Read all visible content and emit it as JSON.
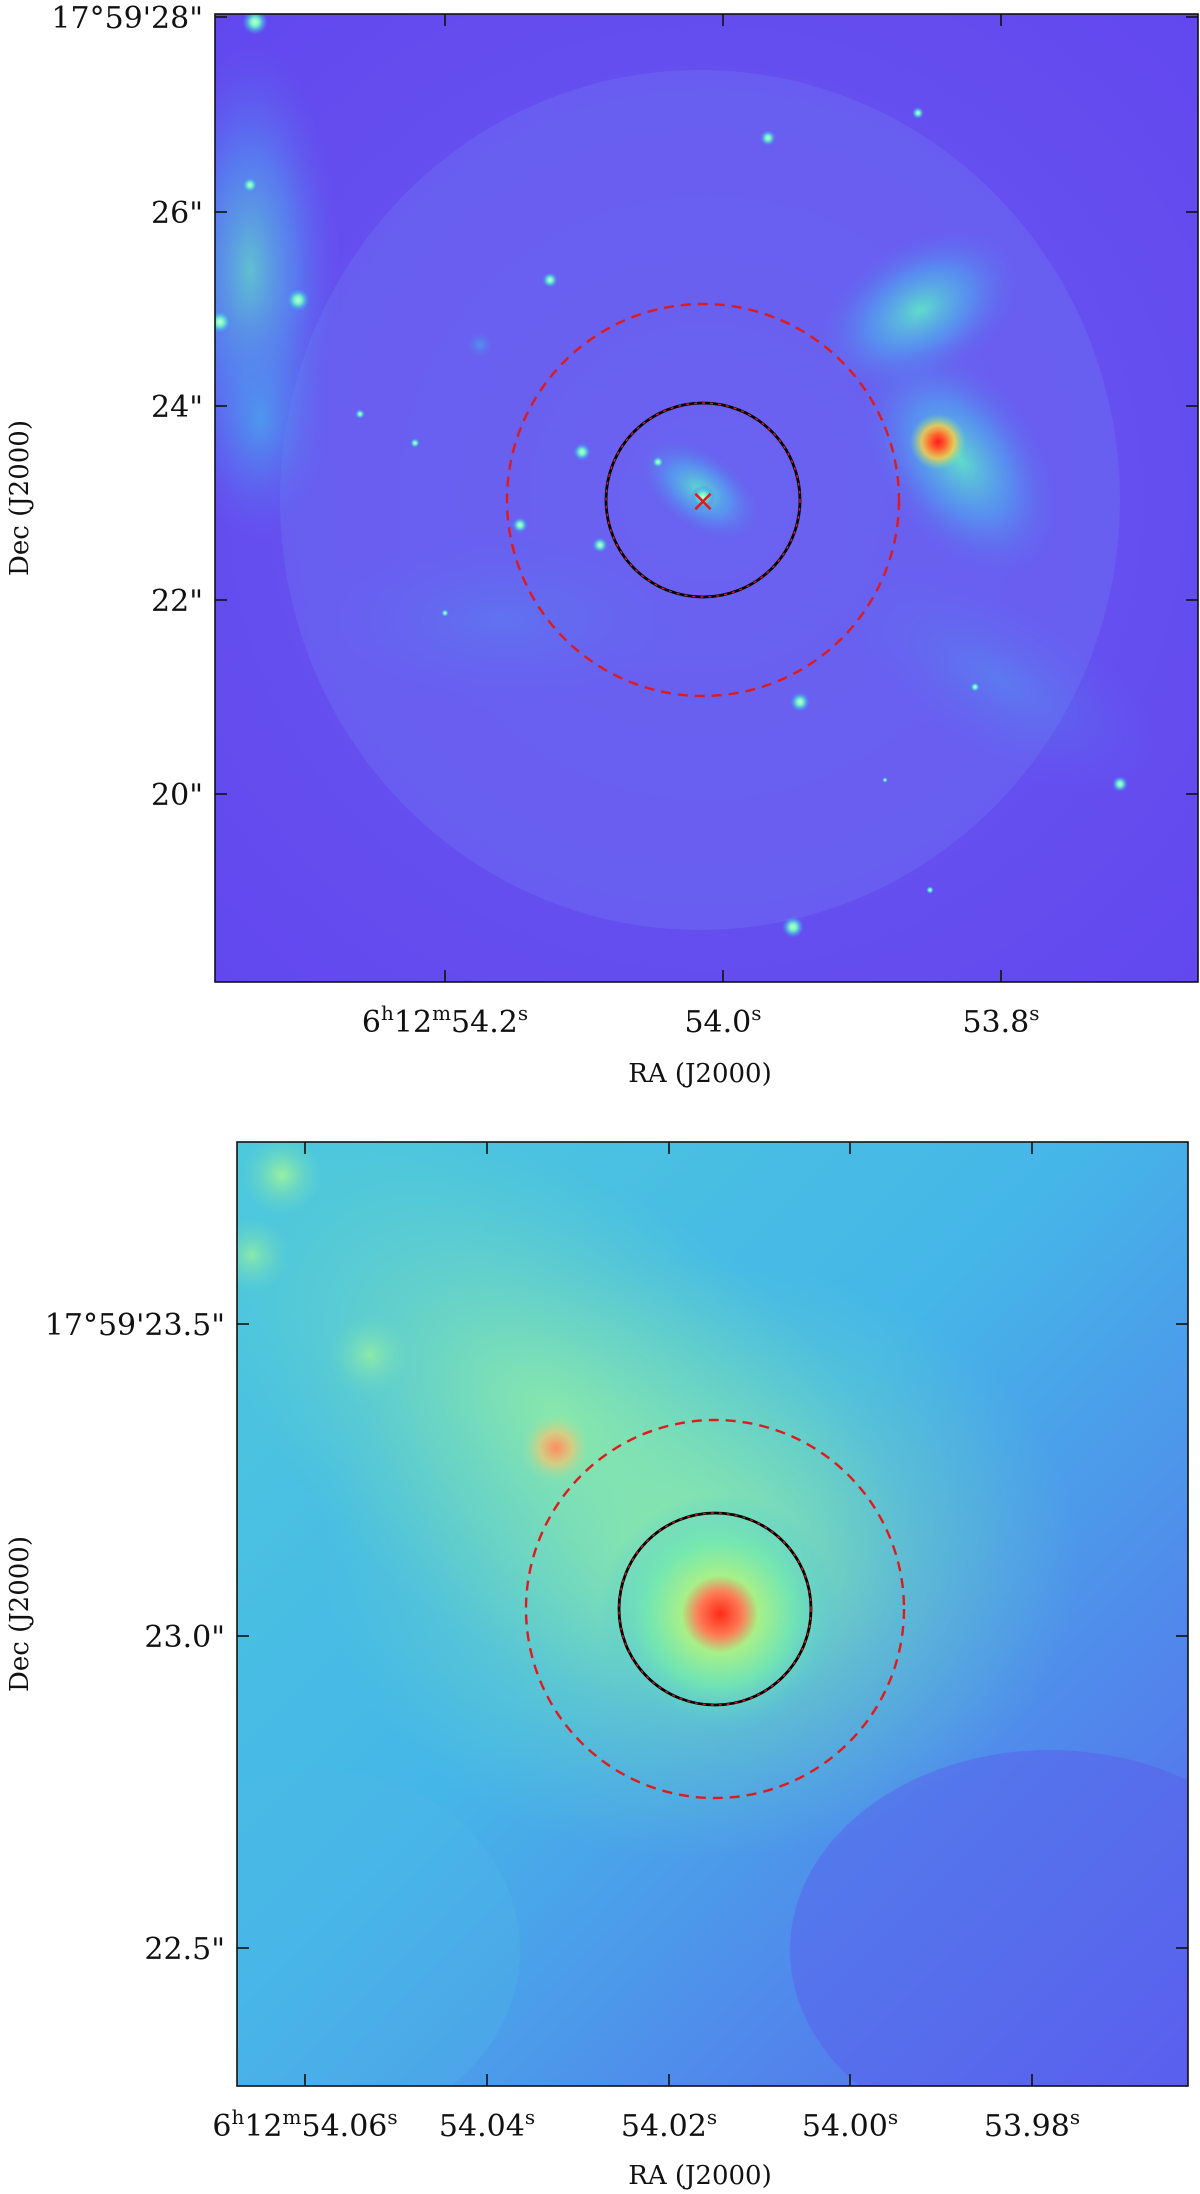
{
  "panels": [
    {
      "id": "top",
      "xlabel": "RA (J2000)",
      "ylabel": "Dec (J2000)",
      "x_ticks": [
        {
          "main": "6",
          "sup1": "h",
          "mid": "12",
          "sup2": "m",
          "rest": "54.2",
          "sup3": "s"
        },
        {
          "main": "",
          "sup1": "",
          "mid": "",
          "sup2": "",
          "rest": "54.0",
          "sup3": "s"
        },
        {
          "main": "",
          "sup1": "",
          "mid": "",
          "sup2": "",
          "rest": "53.8",
          "sup3": "s"
        }
      ],
      "y_ticks": [
        "17°59'28\"",
        "26\"",
        "24\"",
        "22\"",
        "20\""
      ],
      "marker": "×",
      "colors": {
        "inner_circle": "#000000",
        "outer_circle": "#e01a1a",
        "marker": "#e01a1a"
      }
    },
    {
      "id": "bottom",
      "xlabel": "RA (J2000)",
      "ylabel": "Dec (J2000)",
      "x_ticks": [
        {
          "main": "6",
          "sup1": "h",
          "mid": "12",
          "sup2": "m",
          "rest": "54.06",
          "sup3": "s"
        },
        {
          "main": "",
          "sup1": "",
          "mid": "",
          "sup2": "",
          "rest": "54.04",
          "sup3": "s"
        },
        {
          "main": "",
          "sup1": "",
          "mid": "",
          "sup2": "",
          "rest": "54.02",
          "sup3": "s"
        },
        {
          "main": "",
          "sup1": "",
          "mid": "",
          "sup2": "",
          "rest": "54.00",
          "sup3": "s"
        },
        {
          "main": "",
          "sup1": "",
          "mid": "",
          "sup2": "",
          "rest": "53.98",
          "sup3": "s"
        }
      ],
      "y_ticks": [
        "17°59'23.5\"",
        "23.0\"",
        "22.5\""
      ],
      "colors": {
        "inner_circle": "#000000",
        "outer_circle": "#e01a1a"
      }
    }
  ]
}
